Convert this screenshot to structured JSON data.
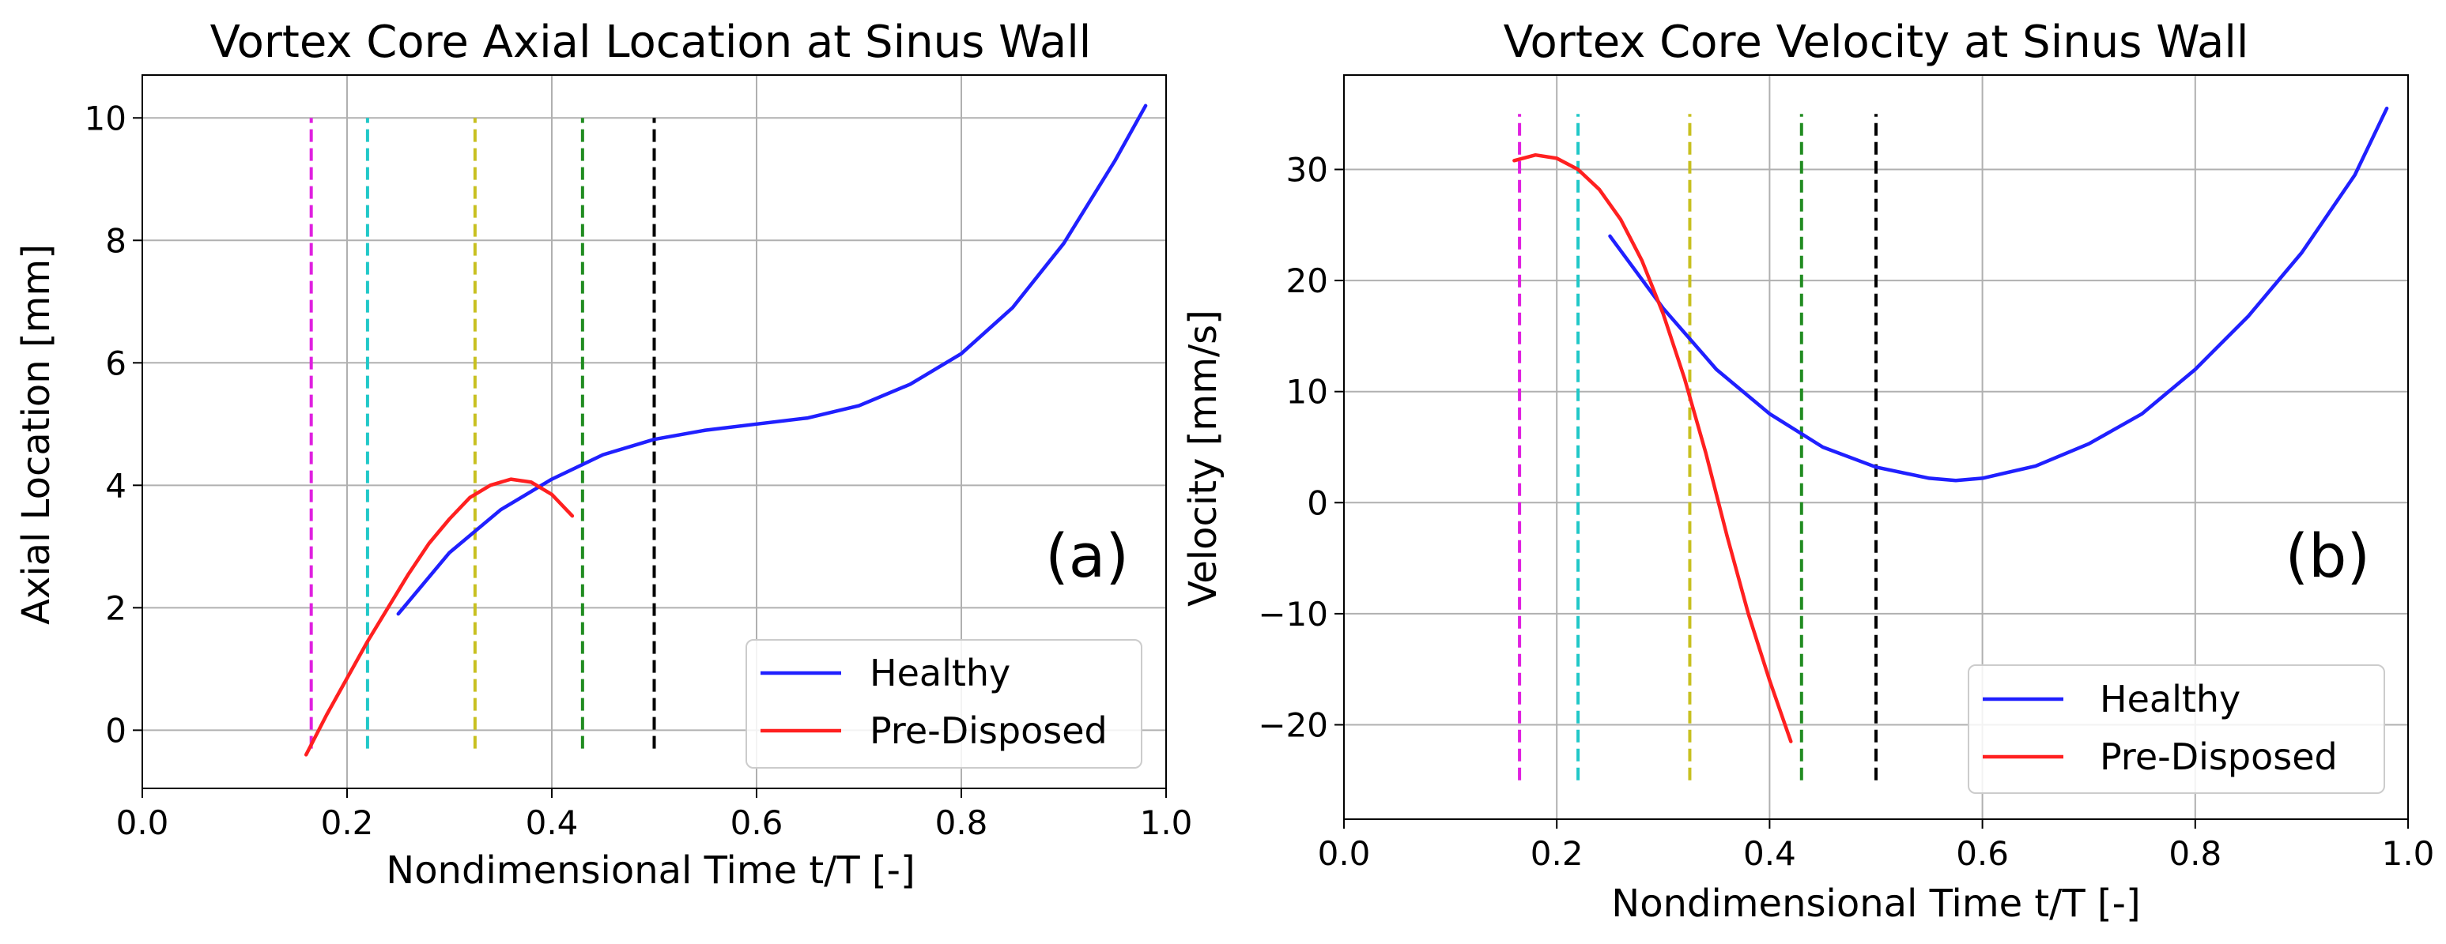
{
  "chart_data": [
    {
      "type": "line",
      "title": "Vortex Core Axial Location at Sinus Wall",
      "xlabel": "Nondimensional Time t/T [-]",
      "ylabel": "Axial Location [mm]",
      "xlim": [
        0.0,
        1.0
      ],
      "ylim": [
        -0.95,
        10.7
      ],
      "xticks": [
        "0.0",
        "0.2",
        "0.4",
        "0.6",
        "0.8",
        "1.0"
      ],
      "xtick_values": [
        0.0,
        0.2,
        0.4,
        0.6,
        0.8,
        1.0
      ],
      "yticks": [
        "0",
        "2",
        "4",
        "6",
        "8",
        "10"
      ],
      "ytick_values": [
        0,
        2,
        4,
        6,
        8,
        10
      ],
      "grid": true,
      "panel_label": "(a)",
      "legend_position": "bottom-right",
      "series": [
        {
          "name": "Healthy",
          "color": "#2020ff",
          "x": [
            0.25,
            0.3,
            0.35,
            0.4,
            0.45,
            0.5,
            0.55,
            0.6,
            0.65,
            0.7,
            0.75,
            0.8,
            0.85,
            0.9,
            0.95,
            0.98
          ],
          "y": [
            1.9,
            2.9,
            3.6,
            4.1,
            4.5,
            4.75,
            4.9,
            5.0,
            5.1,
            5.3,
            5.65,
            6.15,
            6.9,
            7.95,
            9.3,
            10.2
          ]
        },
        {
          "name": "Pre-Disposed",
          "color": "#ff2020",
          "x": [
            0.16,
            0.18,
            0.2,
            0.22,
            0.24,
            0.26,
            0.28,
            0.3,
            0.32,
            0.34,
            0.36,
            0.38,
            0.4,
            0.42
          ],
          "y": [
            -0.4,
            0.25,
            0.85,
            1.45,
            2.0,
            2.55,
            3.05,
            3.45,
            3.8,
            4.0,
            4.1,
            4.05,
            3.85,
            3.5
          ]
        }
      ],
      "vlines": [
        {
          "x": 0.165,
          "color": "#e020e0",
          "ymin": -0.3,
          "ymax": 10.0
        },
        {
          "x": 0.22,
          "color": "#20c8c8",
          "ymin": -0.3,
          "ymax": 10.0
        },
        {
          "x": 0.325,
          "color": "#c8c020",
          "ymin": -0.3,
          "ymax": 10.0
        },
        {
          "x": 0.43,
          "color": "#208c20",
          "ymin": -0.3,
          "ymax": 10.0
        },
        {
          "x": 0.5,
          "color": "#000000",
          "ymin": -0.3,
          "ymax": 10.0
        }
      ]
    },
    {
      "type": "line",
      "title": "Vortex Core Velocity at Sinus Wall",
      "xlabel": "Nondimensional Time t/T [-]",
      "ylabel": "Velocity [mm/s]",
      "xlim": [
        0.0,
        1.0
      ],
      "ylim": [
        -28.5,
        38.5
      ],
      "xticks": [
        "0.0",
        "0.2",
        "0.4",
        "0.6",
        "0.8",
        "1.0"
      ],
      "xtick_values": [
        0.0,
        0.2,
        0.4,
        0.6,
        0.8,
        1.0
      ],
      "yticks": [
        "−20",
        "−10",
        "0",
        "10",
        "20",
        "30"
      ],
      "ytick_values": [
        -20,
        -10,
        0,
        10,
        20,
        30
      ],
      "grid": true,
      "panel_label": "(b)",
      "legend_position": "bottom-right",
      "series": [
        {
          "name": "Healthy",
          "color": "#2020ff",
          "x": [
            0.25,
            0.3,
            0.35,
            0.4,
            0.45,
            0.5,
            0.55,
            0.575,
            0.6,
            0.65,
            0.7,
            0.75,
            0.8,
            0.85,
            0.9,
            0.95,
            0.98
          ],
          "y": [
            24.0,
            17.5,
            12.0,
            8.0,
            5.0,
            3.2,
            2.2,
            2.0,
            2.2,
            3.3,
            5.3,
            8.0,
            12.0,
            16.8,
            22.5,
            29.5,
            35.5
          ]
        },
        {
          "name": "Pre-Disposed",
          "color": "#ff2020",
          "x": [
            0.16,
            0.18,
            0.2,
            0.22,
            0.24,
            0.26,
            0.28,
            0.3,
            0.32,
            0.34,
            0.36,
            0.38,
            0.4,
            0.42
          ],
          "y": [
            30.8,
            31.3,
            31.0,
            30.0,
            28.2,
            25.5,
            21.8,
            17.0,
            11.2,
            4.5,
            -3.0,
            -10.0,
            -16.0,
            -21.5
          ]
        }
      ],
      "vlines": [
        {
          "x": 0.165,
          "color": "#e020e0",
          "ymin": -25,
          "ymax": 35
        },
        {
          "x": 0.22,
          "color": "#20c8c8",
          "ymin": -25,
          "ymax": 35
        },
        {
          "x": 0.325,
          "color": "#c8c020",
          "ymin": -25,
          "ymax": 35
        },
        {
          "x": 0.43,
          "color": "#208c20",
          "ymin": -25,
          "ymax": 35
        },
        {
          "x": 0.5,
          "color": "#000000",
          "ymin": -25,
          "ymax": 35
        }
      ]
    }
  ]
}
